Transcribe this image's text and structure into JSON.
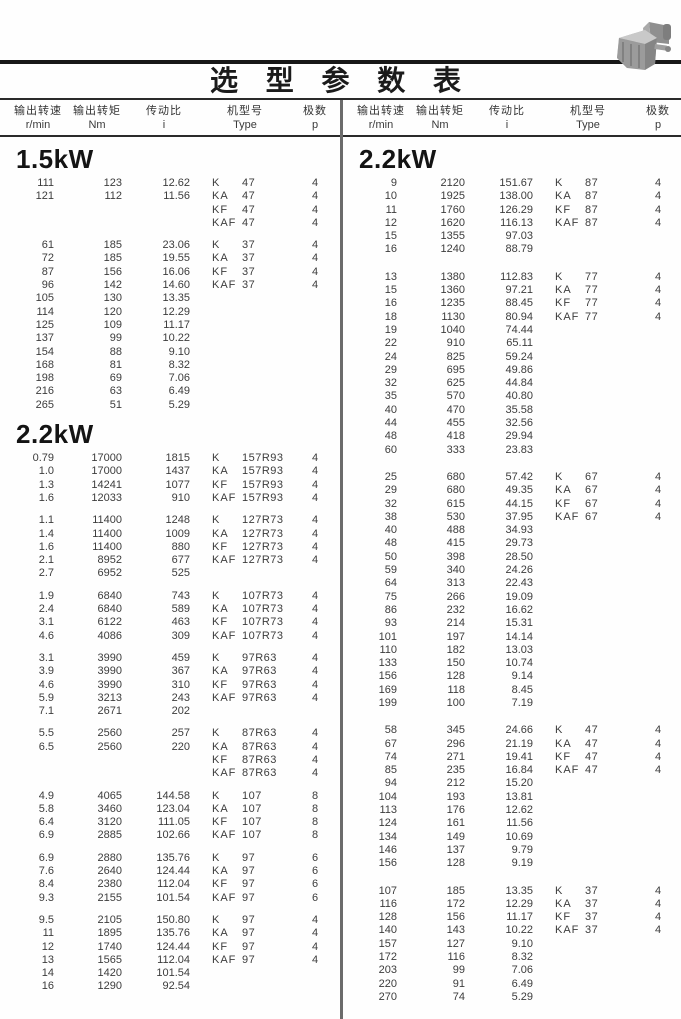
{
  "title": "选 型 参 数 表",
  "icons": {
    "top_right_photo": "gearmotor-photo"
  },
  "colors": {
    "rule": "#181818",
    "divider": "#6b6b6b",
    "text": "#3c3c3c",
    "heading": "#141414"
  },
  "columns": [
    {
      "label": "输出转速",
      "unit": "r/min"
    },
    {
      "label": "输出转矩",
      "unit": "Nm"
    },
    {
      "label": "传动比",
      "unit": "i"
    },
    {
      "label": "机型号",
      "unit": "Type"
    },
    {
      "label": "极数",
      "unit": "p"
    }
  ],
  "left": {
    "sections": [
      {
        "power": "1.5kW",
        "blocks": [
          [
            [
              "111",
              "123",
              "12.62",
              "K",
              "47",
              "4"
            ],
            [
              "121",
              "112",
              "11.56",
              "KA",
              "47",
              "4"
            ],
            [
              "",
              "",
              "",
              "KF",
              "47",
              "4"
            ],
            [
              "",
              "",
              "",
              "KAF",
              "47",
              "4"
            ]
          ],
          [
            [
              "61",
              "185",
              "23.06",
              "K",
              "37",
              "4"
            ],
            [
              "72",
              "185",
              "19.55",
              "KA",
              "37",
              "4"
            ],
            [
              "87",
              "156",
              "16.06",
              "KF",
              "37",
              "4"
            ],
            [
              "96",
              "142",
              "14.60",
              "KAF",
              "37",
              "4"
            ],
            [
              "105",
              "130",
              "13.35",
              "",
              "",
              ""
            ],
            [
              "114",
              "120",
              "12.29",
              "",
              "",
              ""
            ],
            [
              "125",
              "109",
              "11.17",
              "",
              "",
              ""
            ],
            [
              "137",
              "99",
              "10.22",
              "",
              "",
              ""
            ],
            [
              "154",
              "88",
              "9.10",
              "",
              "",
              ""
            ],
            [
              "168",
              "81",
              "8.32",
              "",
              "",
              ""
            ],
            [
              "198",
              "69",
              "7.06",
              "",
              "",
              ""
            ],
            [
              "216",
              "63",
              "6.49",
              "",
              "",
              ""
            ],
            [
              "265",
              "51",
              "5.29",
              "",
              "",
              ""
            ]
          ]
        ]
      },
      {
        "power": "2.2kW",
        "blocks": [
          [
            [
              "0.79",
              "17000",
              "1815",
              "K",
              "157R93",
              "4"
            ],
            [
              "1.0",
              "17000",
              "1437",
              "KA",
              "157R93",
              "4"
            ],
            [
              "1.3",
              "14241",
              "1077",
              "KF",
              "157R93",
              "4"
            ],
            [
              "1.6",
              "12033",
              "910",
              "KAF",
              "157R93",
              "4"
            ]
          ],
          [
            [
              "1.1",
              "11400",
              "1248",
              "K",
              "127R73",
              "4"
            ],
            [
              "1.4",
              "11400",
              "1009",
              "KA",
              "127R73",
              "4"
            ],
            [
              "1.6",
              "11400",
              "880",
              "KF",
              "127R73",
              "4"
            ],
            [
              "2.1",
              "8952",
              "677",
              "KAF",
              "127R73",
              "4"
            ],
            [
              "2.7",
              "6952",
              "525",
              "",
              "",
              ""
            ]
          ],
          [
            [
              "1.9",
              "6840",
              "743",
              "K",
              "107R73",
              "4"
            ],
            [
              "2.4",
              "6840",
              "589",
              "KA",
              "107R73",
              "4"
            ],
            [
              "3.1",
              "6122",
              "463",
              "KF",
              "107R73",
              "4"
            ],
            [
              "4.6",
              "4086",
              "309",
              "KAF",
              "107R73",
              "4"
            ]
          ],
          [
            [
              "3.1",
              "3990",
              "459",
              "K",
              "97R63",
              "4"
            ],
            [
              "3.9",
              "3990",
              "367",
              "KA",
              "97R63",
              "4"
            ],
            [
              "4.6",
              "3990",
              "310",
              "KF",
              "97R63",
              "4"
            ],
            [
              "5.9",
              "3213",
              "243",
              "KAF",
              "97R63",
              "4"
            ],
            [
              "7.1",
              "2671",
              "202",
              "",
              "",
              ""
            ]
          ],
          [
            [
              "5.5",
              "2560",
              "257",
              "K",
              "87R63",
              "4"
            ],
            [
              "6.5",
              "2560",
              "220",
              "KA",
              "87R63",
              "4"
            ],
            [
              "",
              "",
              "",
              "KF",
              "87R63",
              "4"
            ],
            [
              "",
              "",
              "",
              "KAF",
              "87R63",
              "4"
            ]
          ],
          [
            [
              "4.9",
              "4065",
              "144.58",
              "K",
              "107",
              "8"
            ],
            [
              "5.8",
              "3460",
              "123.04",
              "KA",
              "107",
              "8"
            ],
            [
              "6.4",
              "3120",
              "111.05",
              "KF",
              "107",
              "8"
            ],
            [
              "6.9",
              "2885",
              "102.66",
              "KAF",
              "107",
              "8"
            ]
          ],
          [
            [
              "6.9",
              "2880",
              "135.76",
              "K",
              "97",
              "6"
            ],
            [
              "7.6",
              "2640",
              "124.44",
              "KA",
              "97",
              "6"
            ],
            [
              "8.4",
              "2380",
              "112.04",
              "KF",
              "97",
              "6"
            ],
            [
              "9.3",
              "2155",
              "101.54",
              "KAF",
              "97",
              "6"
            ]
          ],
          [
            [
              "9.5",
              "2105",
              "150.80",
              "K",
              "97",
              "4"
            ],
            [
              "11",
              "1895",
              "135.76",
              "KA",
              "97",
              "4"
            ],
            [
              "12",
              "1740",
              "124.44",
              "KF",
              "97",
              "4"
            ],
            [
              "13",
              "1565",
              "112.04",
              "KAF",
              "97",
              "4"
            ],
            [
              "14",
              "1420",
              "101.54",
              "",
              "",
              ""
            ],
            [
              "16",
              "1290",
              "92.54",
              "",
              "",
              ""
            ]
          ]
        ]
      }
    ]
  },
  "right": {
    "sections": [
      {
        "power": "2.2kW",
        "blocks": [
          [
            [
              "9",
              "2120",
              "151.67",
              "K",
              "87",
              "4"
            ],
            [
              "10",
              "1925",
              "138.00",
              "KA",
              "87",
              "4"
            ],
            [
              "11",
              "1760",
              "126.29",
              "KF",
              "87",
              "4"
            ],
            [
              "12",
              "1620",
              "116.13",
              "KAF",
              "87",
              "4"
            ],
            [
              "15",
              "1355",
              "97.03",
              "",
              "",
              ""
            ],
            [
              "16",
              "1240",
              "88.79",
              "",
              "",
              ""
            ]
          ],
          [
            [
              "13",
              "1380",
              "112.83",
              "K",
              "77",
              "4"
            ],
            [
              "15",
              "1360",
              "97.21",
              "KA",
              "77",
              "4"
            ],
            [
              "16",
              "1235",
              "88.45",
              "KF",
              "77",
              "4"
            ],
            [
              "18",
              "1130",
              "80.94",
              "KAF",
              "77",
              "4"
            ],
            [
              "19",
              "1040",
              "74.44",
              "",
              "",
              ""
            ],
            [
              "22",
              "910",
              "65.11",
              "",
              "",
              ""
            ],
            [
              "24",
              "825",
              "59.24",
              "",
              "",
              ""
            ],
            [
              "29",
              "695",
              "49.86",
              "",
              "",
              ""
            ],
            [
              "32",
              "625",
              "44.84",
              "",
              "",
              ""
            ],
            [
              "35",
              "570",
              "40.80",
              "",
              "",
              ""
            ],
            [
              "40",
              "470",
              "35.58",
              "",
              "",
              ""
            ],
            [
              "44",
              "455",
              "32.56",
              "",
              "",
              ""
            ],
            [
              "48",
              "418",
              "29.94",
              "",
              "",
              ""
            ],
            [
              "60",
              "333",
              "23.83",
              "",
              "",
              ""
            ]
          ],
          [
            [
              "25",
              "680",
              "57.42",
              "K",
              "67",
              "4"
            ],
            [
              "29",
              "680",
              "49.35",
              "KA",
              "67",
              "4"
            ],
            [
              "32",
              "615",
              "44.15",
              "KF",
              "67",
              "4"
            ],
            [
              "38",
              "530",
              "37.95",
              "KAF",
              "67",
              "4"
            ],
            [
              "40",
              "488",
              "34.93",
              "",
              "",
              ""
            ],
            [
              "48",
              "415",
              "29.73",
              "",
              "",
              ""
            ],
            [
              "50",
              "398",
              "28.50",
              "",
              "",
              ""
            ],
            [
              "59",
              "340",
              "24.26",
              "",
              "",
              ""
            ],
            [
              "64",
              "313",
              "22.43",
              "",
              "",
              ""
            ],
            [
              "75",
              "266",
              "19.09",
              "",
              "",
              ""
            ],
            [
              "86",
              "232",
              "16.62",
              "",
              "",
              ""
            ],
            [
              "93",
              "214",
              "15.31",
              "",
              "",
              ""
            ],
            [
              "101",
              "197",
              "14.14",
              "",
              "",
              ""
            ],
            [
              "110",
              "182",
              "13.03",
              "",
              "",
              ""
            ],
            [
              "133",
              "150",
              "10.74",
              "",
              "",
              ""
            ],
            [
              "156",
              "128",
              "9.14",
              "",
              "",
              ""
            ],
            [
              "169",
              "118",
              "8.45",
              "",
              "",
              ""
            ],
            [
              "199",
              "100",
              "7.19",
              "",
              "",
              ""
            ]
          ],
          [
            [
              "58",
              "345",
              "24.66",
              "K",
              "47",
              "4"
            ],
            [
              "67",
              "296",
              "21.19",
              "KA",
              "47",
              "4"
            ],
            [
              "74",
              "271",
              "19.41",
              "KF",
              "47",
              "4"
            ],
            [
              "85",
              "235",
              "16.84",
              "KAF",
              "47",
              "4"
            ],
            [
              "94",
              "212",
              "15.20",
              "",
              "",
              ""
            ],
            [
              "104",
              "193",
              "13.81",
              "",
              "",
              ""
            ],
            [
              "113",
              "176",
              "12.62",
              "",
              "",
              ""
            ],
            [
              "124",
              "161",
              "11.56",
              "",
              "",
              ""
            ],
            [
              "134",
              "149",
              "10.69",
              "",
              "",
              ""
            ],
            [
              "146",
              "137",
              "9.79",
              "",
              "",
              ""
            ],
            [
              "156",
              "128",
              "9.19",
              "",
              "",
              ""
            ]
          ],
          [
            [
              "107",
              "185",
              "13.35",
              "K",
              "37",
              "4"
            ],
            [
              "116",
              "172",
              "12.29",
              "KA",
              "37",
              "4"
            ],
            [
              "128",
              "156",
              "11.17",
              "KF",
              "37",
              "4"
            ],
            [
              "140",
              "143",
              "10.22",
              "KAF",
              "37",
              "4"
            ],
            [
              "157",
              "127",
              "9.10",
              "",
              "",
              ""
            ],
            [
              "172",
              "116",
              "8.32",
              "",
              "",
              ""
            ],
            [
              "203",
              "99",
              "7.06",
              "",
              "",
              ""
            ],
            [
              "220",
              "91",
              "6.49",
              "",
              "",
              ""
            ],
            [
              "270",
              "74",
              "5.29",
              "",
              "",
              ""
            ]
          ]
        ]
      }
    ]
  }
}
